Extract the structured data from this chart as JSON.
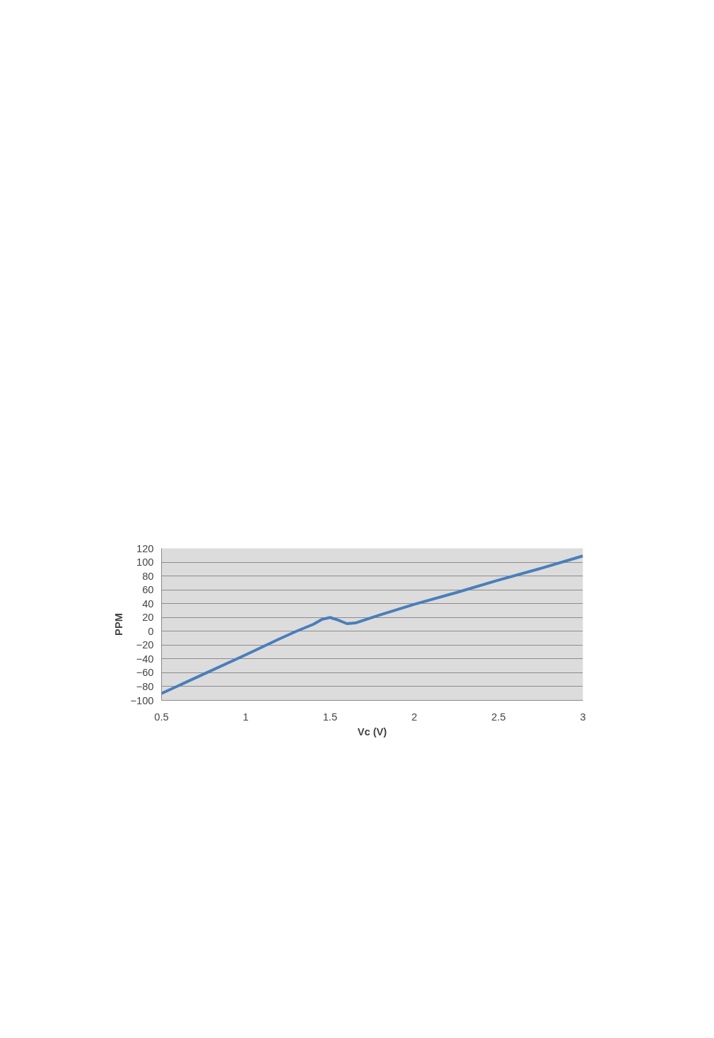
{
  "chart_data": {
    "type": "line",
    "xlabel": "Vc (V)",
    "ylabel": "PPM",
    "x": [
      0.5,
      0.75,
      1,
      1.2,
      1.3,
      1.4,
      1.45,
      1.5,
      1.55,
      1.6,
      1.65,
      1.7,
      1.8,
      2,
      2.25,
      2.5,
      2.75,
      3
    ],
    "series": [
      {
        "color": "#4a7ebb",
        "values": [
          -90,
          -62,
          -34,
          -11,
          0,
          10,
          17,
          20,
          16,
          11,
          12,
          16,
          24,
          39,
          56,
          74,
          91,
          109
        ]
      }
    ],
    "xlim": [
      0.5,
      3
    ],
    "ylim": [
      -100,
      120
    ],
    "xticks": [
      0.5,
      1,
      1.5,
      2,
      2.5,
      3
    ],
    "yticks": [
      -100,
      -80,
      -60,
      -40,
      -20,
      0,
      20,
      40,
      60,
      80,
      100,
      120
    ],
    "grid": "y",
    "marker": "none",
    "line_style": "solid"
  }
}
